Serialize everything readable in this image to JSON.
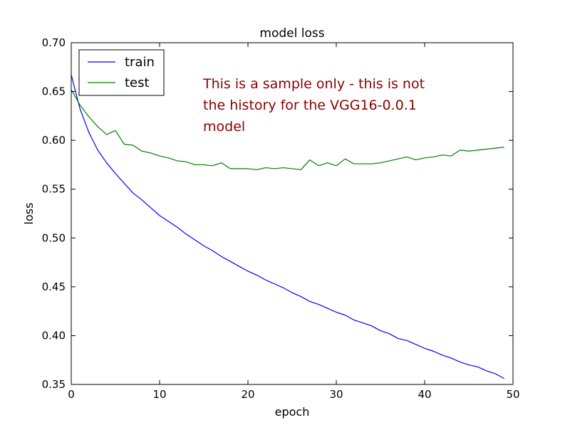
{
  "chart_data": {
    "type": "line",
    "title": "model loss",
    "xlabel": "epoch",
    "ylabel": "loss",
    "xlim": [
      0,
      50
    ],
    "ylim": [
      0.35,
      0.7
    ],
    "xticks": [
      "0",
      "10",
      "20",
      "30",
      "40",
      "50"
    ],
    "yticks": [
      "0.35",
      "0.40",
      "0.45",
      "0.50",
      "0.55",
      "0.60",
      "0.65",
      "0.70"
    ],
    "legend_position": "top-left",
    "grid": false,
    "x": [
      0,
      1,
      2,
      3,
      4,
      5,
      6,
      7,
      8,
      9,
      10,
      11,
      12,
      13,
      14,
      15,
      16,
      17,
      18,
      19,
      20,
      21,
      22,
      23,
      24,
      25,
      26,
      27,
      28,
      29,
      30,
      31,
      32,
      33,
      34,
      35,
      36,
      37,
      38,
      39,
      40,
      41,
      42,
      43,
      44,
      45,
      46,
      47,
      48,
      49
    ],
    "series": [
      {
        "name": "train",
        "color": "#0000ff",
        "values": [
          0.667,
          0.632,
          0.608,
          0.59,
          0.577,
          0.566,
          0.556,
          0.546,
          0.539,
          0.531,
          0.523,
          0.517,
          0.511,
          0.504,
          0.498,
          0.492,
          0.487,
          0.481,
          0.476,
          0.471,
          0.466,
          0.462,
          0.457,
          0.453,
          0.449,
          0.444,
          0.44,
          0.435,
          0.432,
          0.428,
          0.424,
          0.421,
          0.416,
          0.413,
          0.41,
          0.405,
          0.402,
          0.397,
          0.395,
          0.391,
          0.387,
          0.384,
          0.38,
          0.377,
          0.373,
          0.37,
          0.368,
          0.364,
          0.361,
          0.356
        ]
      },
      {
        "name": "test",
        "color": "#008000",
        "values": [
          0.652,
          0.636,
          0.624,
          0.614,
          0.606,
          0.61,
          0.596,
          0.595,
          0.589,
          0.587,
          0.584,
          0.582,
          0.579,
          0.578,
          0.575,
          0.575,
          0.574,
          0.577,
          0.571,
          0.571,
          0.571,
          0.57,
          0.572,
          0.571,
          0.572,
          0.571,
          0.57,
          0.58,
          0.574,
          0.577,
          0.574,
          0.581,
          0.576,
          0.576,
          0.576,
          0.577,
          0.579,
          0.581,
          0.583,
          0.58,
          0.582,
          0.583,
          0.585,
          0.584,
          0.59,
          0.589,
          0.59,
          0.591,
          0.592,
          0.593
        ]
      }
    ],
    "annotation": [
      "This is a sample only - this is not",
      "the history for the VGG16-0.0.1",
      "model"
    ],
    "annotation_color": "#8b0000"
  }
}
